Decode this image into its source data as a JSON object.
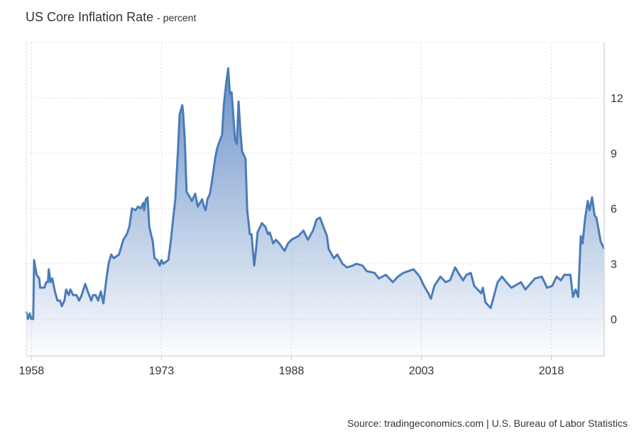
{
  "title": "US Core Inflation Rate",
  "subtitle": "- percent",
  "source": "Source: tradingeconomics.com | U.S. Bureau of Labor Statistics",
  "colors": {
    "line": "#4a7cb8",
    "fill_top": "#5b86c2",
    "grid": "#dddddd"
  },
  "chart_data": {
    "type": "area",
    "title": "US Core Inflation Rate",
    "subtitle": "percent",
    "xlabel": "",
    "ylabel": "",
    "xlim": [
      1957.4,
      2024.1
    ],
    "ylim": [
      -2,
      15
    ],
    "x_ticks": [
      1958,
      1973,
      1988,
      2003,
      2018
    ],
    "x_tick_labels": [
      "1958",
      "1973",
      "1988",
      "2003",
      "2018"
    ],
    "y_ticks": [
      0,
      3,
      6,
      9,
      12
    ],
    "y_tick_labels": [
      "0",
      "3",
      "6",
      "9",
      "12"
    ],
    "y_axis_side": "right",
    "grid": true,
    "legend": "none",
    "x": [
      1957.4,
      1957.6,
      1957.8,
      1958.0,
      1958.2,
      1958.3,
      1958.6,
      1958.9,
      1959.0,
      1959.5,
      1959.7,
      1959.9,
      1960.0,
      1960.2,
      1960.4,
      1960.7,
      1961.0,
      1961.3,
      1961.5,
      1961.8,
      1962.0,
      1962.3,
      1962.5,
      1962.8,
      1963.2,
      1963.5,
      1963.8,
      1964.2,
      1964.5,
      1964.9,
      1965.1,
      1965.4,
      1965.7,
      1966.0,
      1966.3,
      1966.6,
      1966.9,
      1967.2,
      1967.5,
      1968.1,
      1968.6,
      1969.0,
      1969.3,
      1969.6,
      1970.0,
      1970.3,
      1970.6,
      1970.9,
      1971.0,
      1971.2,
      1971.4,
      1971.6,
      1972.0,
      1972.2,
      1972.5,
      1972.8,
      1973.0,
      1973.2,
      1973.5,
      1973.8,
      1974.1,
      1974.3,
      1974.6,
      1974.9,
      1975.1,
      1975.4,
      1975.5,
      1975.7,
      1975.9,
      1976.3,
      1976.5,
      1976.9,
      1977.2,
      1977.7,
      1977.9,
      1978.1,
      1978.3,
      1978.6,
      1978.8,
      1979.2,
      1979.4,
      1979.6,
      1980.0,
      1980.2,
      1980.5,
      1980.7,
      1980.9,
      1981.1,
      1981.3,
      1981.5,
      1981.7,
      1981.9,
      1982.1,
      1982.3,
      1982.7,
      1982.9,
      1983.2,
      1983.4,
      1983.7,
      1983.9,
      1984.1,
      1984.6,
      1985.0,
      1985.3,
      1985.5,
      1985.9,
      1986.2,
      1986.6,
      1987.2,
      1987.6,
      1988.0,
      1988.8,
      1989.4,
      1989.9,
      1990.5,
      1990.9,
      1991.3,
      1991.7,
      1992.1,
      1992.3,
      1992.9,
      1993.3,
      1993.9,
      1994.4,
      1995.1,
      1995.5,
      1996.2,
      1996.7,
      1997.6,
      1998.1,
      1998.9,
      1999.7,
      2000.3,
      2000.9,
      2001.5,
      2002.1,
      2002.8,
      2003.3,
      2003.8,
      2004.1,
      2004.5,
      2005.2,
      2005.8,
      2006.3,
      2006.9,
      2007.4,
      2007.8,
      2008.2,
      2008.7,
      2009.1,
      2009.9,
      2010.1,
      2010.4,
      2011.0,
      2011.8,
      2012.3,
      2012.8,
      2013.4,
      2014.5,
      2015.0,
      2016.1,
      2016.9,
      2017.5,
      2018.1,
      2018.6,
      2019.1,
      2019.5,
      2020.0,
      2020.2,
      2020.4,
      2020.5,
      2020.8,
      2021.1,
      2021.4,
      2021.6,
      2021.9,
      2022.2,
      2022.4,
      2022.7,
      2023.0,
      2023.2,
      2023.7,
      2024.1
    ],
    "y": [
      0.4,
      0.0,
      0.3,
      0.0,
      0.0,
      3.2,
      2.4,
      2.2,
      1.7,
      1.7,
      2.0,
      2.0,
      2.7,
      2.0,
      2.2,
      1.5,
      1.0,
      1.0,
      0.7,
      1.0,
      1.6,
      1.3,
      1.6,
      1.3,
      1.3,
      1.0,
      1.3,
      1.9,
      1.5,
      1.0,
      1.3,
      1.3,
      1.0,
      1.5,
      0.85,
      2.0,
      3.0,
      3.5,
      3.3,
      3.5,
      4.3,
      4.6,
      5.0,
      6.0,
      5.9,
      6.1,
      6.0,
      6.3,
      5.9,
      6.5,
      6.6,
      5.0,
      4.2,
      3.3,
      3.2,
      2.9,
      3.2,
      3.0,
      3.1,
      3.2,
      4.3,
      5.2,
      6.5,
      9.1,
      11.1,
      11.6,
      11.2,
      9.7,
      6.9,
      6.6,
      6.4,
      6.8,
      6.1,
      6.5,
      6.1,
      5.9,
      6.5,
      6.8,
      7.4,
      8.7,
      9.2,
      9.5,
      10.0,
      11.6,
      12.9,
      13.6,
      12.2,
      12.3,
      11.0,
      9.7,
      9.5,
      11.8,
      10.3,
      9.1,
      8.7,
      5.9,
      4.6,
      4.6,
      2.9,
      3.7,
      4.7,
      5.2,
      5.0,
      4.6,
      4.7,
      4.1,
      4.3,
      4.1,
      3.7,
      4.1,
      4.3,
      4.5,
      4.8,
      4.3,
      4.8,
      5.4,
      5.5,
      5.0,
      4.5,
      3.8,
      3.3,
      3.5,
      3.0,
      2.8,
      2.9,
      3.0,
      2.9,
      2.6,
      2.5,
      2.2,
      2.4,
      2.0,
      2.3,
      2.5,
      2.6,
      2.7,
      2.3,
      1.8,
      1.4,
      1.1,
      1.8,
      2.3,
      2.0,
      2.1,
      2.8,
      2.4,
      2.1,
      2.4,
      2.5,
      1.8,
      1.4,
      1.7,
      0.9,
      0.6,
      2.0,
      2.3,
      2.0,
      1.7,
      2.0,
      1.6,
      2.2,
      2.3,
      1.7,
      1.8,
      2.3,
      2.1,
      2.4,
      2.4,
      2.4,
      1.6,
      1.2,
      1.6,
      1.2,
      4.5,
      4.1,
      5.5,
      6.4,
      5.9,
      6.6,
      5.6,
      5.5,
      4.2,
      3.8
    ]
  }
}
